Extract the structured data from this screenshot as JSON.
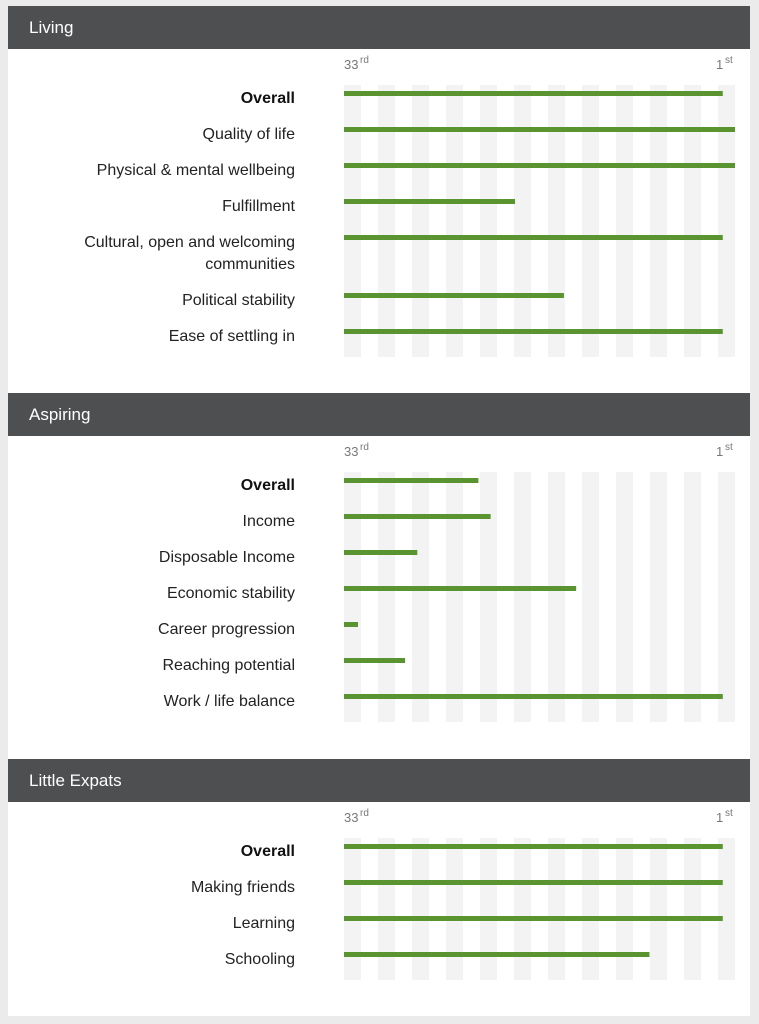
{
  "colors": {
    "header_bg": "#4e4f51",
    "bar": "#5a9430",
    "stripe": "#f3f3f3"
  },
  "rank_axis": {
    "left_num": "33",
    "left_sup": "rd",
    "right_num": "1",
    "right_sup": "st"
  },
  "sections": [
    {
      "title": "Living",
      "categories": [
        {
          "label": "Overall",
          "bold": true,
          "rank": 2
        },
        {
          "label": "Quality of life",
          "bold": false,
          "rank": 1
        },
        {
          "label": "Physical & mental wellbeing",
          "bold": false,
          "rank": 1
        },
        {
          "label": "Fulfillment",
          "bold": false,
          "rank": 19
        },
        {
          "label": "Cultural, open and welcoming communities",
          "bold": false,
          "rank": 2
        },
        {
          "label": "Political stability",
          "bold": false,
          "rank": 15
        },
        {
          "label": "Ease of settling in",
          "bold": false,
          "rank": 2
        }
      ]
    },
    {
      "title": "Aspiring",
      "categories": [
        {
          "label": "Overall",
          "bold": true,
          "rank": 22
        },
        {
          "label": "Income",
          "bold": false,
          "rank": 21
        },
        {
          "label": "Disposable Income",
          "bold": false,
          "rank": 27
        },
        {
          "label": "Economic stability",
          "bold": false,
          "rank": 14
        },
        {
          "label": "Career progression",
          "bold": false,
          "rank": 32
        },
        {
          "label": "Reaching potential",
          "bold": false,
          "rank": 28
        },
        {
          "label": "Work / life balance",
          "bold": false,
          "rank": 2
        }
      ]
    },
    {
      "title": "Little Expats",
      "categories": [
        {
          "label": "Overall",
          "bold": true,
          "rank": 2
        },
        {
          "label": "Making friends",
          "bold": false,
          "rank": 2
        },
        {
          "label": "Learning",
          "bold": false,
          "rank": 2
        },
        {
          "label": "Schooling",
          "bold": false,
          "rank": 8
        }
      ]
    }
  ],
  "chart_data": [
    {
      "type": "bar",
      "title": "Living",
      "categories": [
        "Overall",
        "Quality of life",
        "Physical & mental wellbeing",
        "Fulfillment",
        "Cultural, open and welcoming communities",
        "Political stability",
        "Ease of settling in"
      ],
      "values": [
        2,
        1,
        1,
        19,
        2,
        15,
        2
      ],
      "xlim": [
        33,
        1
      ],
      "tick_labels": [
        "33rd",
        "1st"
      ]
    },
    {
      "type": "bar",
      "title": "Aspiring",
      "categories": [
        "Overall",
        "Income",
        "Disposable Income",
        "Economic stability",
        "Career progression",
        "Reaching potential",
        "Work / life balance"
      ],
      "values": [
        22,
        21,
        27,
        14,
        32,
        28,
        2
      ],
      "xlim": [
        33,
        1
      ],
      "tick_labels": [
        "33rd",
        "1st"
      ]
    },
    {
      "type": "bar",
      "title": "Little Expats",
      "categories": [
        "Overall",
        "Making friends",
        "Learning",
        "Schooling"
      ],
      "values": [
        2,
        2,
        2,
        8
      ],
      "xlim": [
        33,
        1
      ],
      "tick_labels": [
        "33rd",
        "1st"
      ]
    }
  ]
}
